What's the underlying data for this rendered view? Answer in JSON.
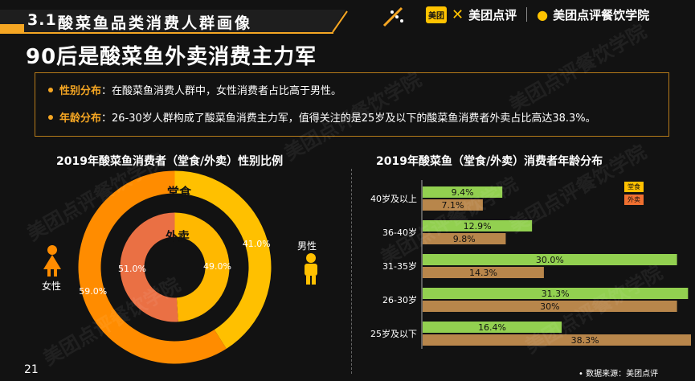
{
  "section": {
    "number": "3.1",
    "title": "酸菜鱼品类消费人群画像"
  },
  "logos": {
    "badge": "美团",
    "meituan": "美团点评",
    "college": "美团点评餐饮学院"
  },
  "headline": "90后是酸菜鱼外卖消费主力军",
  "bullets": [
    {
      "key": "性别分布",
      "text": "：在酸菜鱼消费人群中，女性消费者占比高于男性。"
    },
    {
      "key": "年龄分布",
      "text": "：26-30岁人群构成了酸菜鱼消费主力军，值得关注的是25岁及以下的酸菜鱼消费者外卖占比高达38.3%。"
    }
  ],
  "page_number": "21",
  "source": "数据来源：美团点评",
  "watermark": "美团点评餐饮学院",
  "colors": {
    "dine": "#FFC000",
    "dine_female": "#FF8C00",
    "takeout_female": "#EA7044",
    "takeout_male": "#FFB800",
    "bar_dine": "#92D050",
    "bar_takeout": "#B8864B",
    "accent": "#F5A623"
  },
  "chart_data": [
    {
      "type": "pie",
      "title": "2019年酸菜鱼消费者（堂食/外卖）性别比例",
      "rings": [
        {
          "name": "堂食",
          "slices": [
            {
              "label": "男性",
              "value": 41.0
            },
            {
              "label": "女性",
              "value": 59.0
            }
          ]
        },
        {
          "name": "外卖",
          "slices": [
            {
              "label": "男性",
              "value": 49.0
            },
            {
              "label": "女性",
              "value": 51.0
            }
          ]
        }
      ],
      "legend": {
        "male": "男性",
        "female": "女性"
      }
    },
    {
      "type": "bar",
      "title": "2019年酸菜鱼（堂食/外卖）消费者年龄分布",
      "categories": [
        "40岁及以上",
        "36-40岁",
        "31-35岁",
        "26-30岁",
        "25岁及以下"
      ],
      "series": [
        {
          "name": "堂食",
          "values": [
            9.4,
            12.9,
            30.0,
            31.3,
            16.4
          ],
          "labels": [
            "9.4%",
            "12.9%",
            "30.0%",
            "31.3%",
            "16.4%"
          ]
        },
        {
          "name": "外卖",
          "values": [
            7.1,
            9.8,
            14.3,
            30,
            38.3
          ],
          "labels": [
            "7.1%",
            "9.8%",
            "14.3%",
            "30%",
            "38.3%"
          ]
        }
      ],
      "legend_position": "top-right"
    }
  ]
}
